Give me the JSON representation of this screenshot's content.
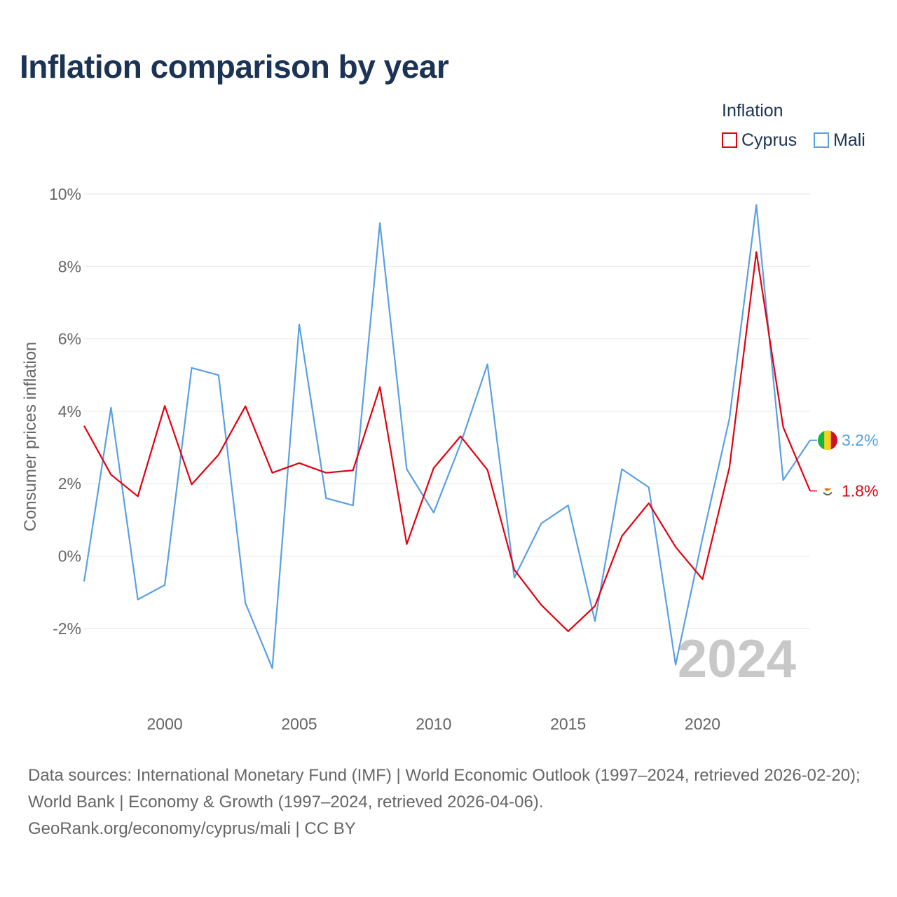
{
  "title": "Inflation comparison by year",
  "legend": {
    "title": "Inflation",
    "items": [
      {
        "label": "Cyprus",
        "color": "#e3000f"
      },
      {
        "label": "Mali",
        "color": "#5aa0e3"
      }
    ]
  },
  "chart_data": {
    "type": "line",
    "title": "Inflation comparison by year",
    "xlabel": "",
    "ylabel": "Consumer prices inflation",
    "x": [
      1997,
      1998,
      1999,
      2000,
      2001,
      2002,
      2003,
      2004,
      2005,
      2006,
      2007,
      2008,
      2009,
      2010,
      2011,
      2012,
      2013,
      2014,
      2015,
      2016,
      2017,
      2018,
      2019,
      2020,
      2021,
      2022,
      2023,
      2024
    ],
    "xlim": [
      1997,
      2024
    ],
    "ylim": [
      -3.5,
      10
    ],
    "xticks": [
      2000,
      2005,
      2010,
      2015,
      2020
    ],
    "yticks": [
      -2,
      0,
      2,
      4,
      6,
      8,
      10
    ],
    "ytick_labels": [
      "-2%",
      "0%",
      "2%",
      "4%",
      "6%",
      "8%",
      "10%"
    ],
    "xtick_labels": [
      "2000",
      "2005",
      "2010",
      "2015",
      "2020"
    ],
    "grid": true,
    "series": [
      {
        "name": "Cyprus",
        "color": "#e3000f",
        "end_label": "1.8%",
        "values": [
          3.6,
          2.25,
          1.65,
          4.15,
          1.98,
          2.8,
          4.14,
          2.3,
          2.57,
          2.3,
          2.37,
          4.67,
          0.33,
          2.43,
          3.31,
          2.38,
          -0.38,
          -1.35,
          -2.08,
          -1.38,
          0.55,
          1.46,
          0.25,
          -0.64,
          2.45,
          8.4,
          3.56,
          1.8
        ]
      },
      {
        "name": "Mali",
        "color": "#5aa0e3",
        "end_label": "3.2%",
        "values": [
          -0.7,
          4.1,
          -1.2,
          -0.8,
          5.2,
          5.0,
          -1.3,
          -3.1,
          6.4,
          1.6,
          1.4,
          9.2,
          2.4,
          1.2,
          3.1,
          5.3,
          -0.6,
          0.9,
          1.4,
          -1.8,
          2.4,
          1.9,
          -3.0,
          0.5,
          3.8,
          9.7,
          2.1,
          3.2
        ]
      }
    ],
    "watermark_year": "2024",
    "end_icons": [
      {
        "series": "Mali",
        "icon": "mali-flag-icon"
      },
      {
        "series": "Cyprus",
        "icon": "cyprus-flag-icon"
      }
    ]
  },
  "footer": {
    "line1": "Data sources: International Monetary Fund (IMF) | World Economic Outlook (1997–2024, retrieved 2026-02-20); World Bank | Economy & Growth (1997–2024, retrieved 2026-04-06).",
    "line2": "GeoRank.org/economy/cyprus/mali | CC BY"
  }
}
